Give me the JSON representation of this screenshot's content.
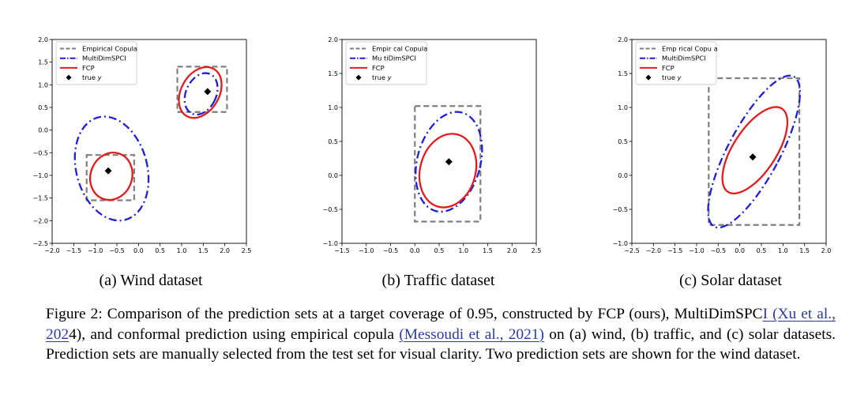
{
  "chart_data": [
    {
      "type": "scatter",
      "caption": "(a) Wind dataset",
      "xlim": [
        -2.0,
        2.5
      ],
      "ylim": [
        -2.5,
        2.0
      ],
      "xticks": [
        "−2.0",
        "−1.5",
        "−1.0",
        "−0.5",
        "0.0",
        "0.5",
        "1.0",
        "1.5",
        "2.0",
        "2.5"
      ],
      "yticks": [
        "−2.5",
        "−2.0",
        "−1.5",
        "−1.0",
        "−0.5",
        "0.0",
        "0.5",
        "1.0",
        "1.5",
        "2.0"
      ],
      "legend": [
        "Empirical Copula",
        "MultiDimSPCI",
        "FCP",
        "true y"
      ],
      "legend_position": "upper-left",
      "colors": {
        "copula": "#7f7f7f",
        "spci": "#1f1fd6",
        "fcp": "#e41a1c",
        "true": "#000000"
      },
      "sets": [
        {
          "true_y": [
            -0.7,
            -0.9
          ],
          "copula_box": [
            [
              -1.2,
              -1.55
            ],
            [
              -0.1,
              -0.55
            ]
          ],
          "spci_ellipse": {
            "center": [
              -0.62,
              -0.85
            ],
            "rx": 0.82,
            "ry": 1.17,
            "angle": -15
          },
          "fcp_ellipse": {
            "center": [
              -0.63,
              -1.02
            ],
            "rx": 0.48,
            "ry": 0.53,
            "angle": 20
          }
        },
        {
          "true_y": [
            1.6,
            0.85
          ],
          "copula_box": [
            [
              0.9,
              0.4
            ],
            [
              2.05,
              1.4
            ]
          ],
          "spci_ellipse": {
            "center": [
              1.45,
              0.8
            ],
            "rx": 0.35,
            "ry": 0.48,
            "angle": 25
          },
          "fcp_ellipse": {
            "center": [
              1.43,
              0.83
            ],
            "rx": 0.44,
            "ry": 0.6,
            "angle": 30
          }
        }
      ]
    },
    {
      "type": "scatter",
      "caption": "(b) Traffic dataset",
      "xlim": [
        -1.5,
        2.5
      ],
      "ylim": [
        -1.0,
        2.0
      ],
      "xticks": [
        "−1.5",
        "−1.0",
        "−0.5",
        "0.0",
        "0.5",
        "1.0",
        "1.5",
        "2.0",
        "2.5"
      ],
      "yticks": [
        "−1.0",
        "−0.5",
        "0.0",
        "0.5",
        "1.0",
        "1.5",
        "2.0"
      ],
      "legend": [
        "Empir cal Copula",
        "Mu tiDimSPCI",
        "FCP",
        "true y"
      ],
      "legend_position": "upper-left",
      "colors": {
        "copula": "#7f7f7f",
        "spci": "#1f1fd6",
        "fcp": "#e41a1c",
        "true": "#000000"
      },
      "sets": [
        {
          "true_y": [
            0.7,
            0.2
          ],
          "copula_box": [
            [
              0.0,
              -0.68
            ],
            [
              1.35,
              1.02
            ]
          ],
          "spci_ellipse": {
            "center": [
              0.7,
              0.2
            ],
            "rx": 0.65,
            "ry": 0.75,
            "angle": 15
          },
          "fcp_ellipse": {
            "center": [
              0.68,
              0.07
            ],
            "rx": 0.57,
            "ry": 0.55,
            "angle": 15
          }
        }
      ]
    },
    {
      "type": "scatter",
      "caption": "(c) Solar dataset",
      "xlim": [
        -2.5,
        2.0
      ],
      "ylim": [
        -1.0,
        2.0
      ],
      "xticks": [
        "−2.5",
        "−2.0",
        "−1.5",
        "−1.0",
        "−0.5",
        "0.0",
        "0.5",
        "1.0",
        "1.5",
        "2.0"
      ],
      "yticks": [
        "−1.0",
        "−0.5",
        "0.0",
        "0.5",
        "1.0",
        "1.5",
        "2.0"
      ],
      "legend": [
        "Emp rical Copu a",
        "MultiDimSPCI",
        "FCP",
        "true y"
      ],
      "legend_position": "upper-left",
      "colors": {
        "copula": "#7f7f7f",
        "spci": "#1f1fd6",
        "fcp": "#e41a1c",
        "true": "#000000"
      },
      "sets": [
        {
          "true_y": [
            0.3,
            0.27
          ],
          "copula_box": [
            [
              -0.72,
              -0.73
            ],
            [
              1.38,
              1.43
            ]
          ],
          "spci_ellipse": {
            "center": [
              0.33,
              0.35
            ],
            "rx": 0.6,
            "ry": 1.25,
            "angle": 28
          },
          "fcp_ellipse": {
            "center": [
              0.35,
              0.37
            ],
            "rx": 0.5,
            "ry": 0.73,
            "angle": 33
          }
        }
      ]
    }
  ],
  "figure": {
    "caption_parts": [
      {
        "text": "Figure 2: Comparison of the prediction sets at a target coverage of 0.95, constructed by FCP (ours), MultiDimSPC",
        "cite": false
      },
      {
        "text": "I (Xu et al., 202",
        "cite": true
      },
      {
        "text": "4), and conformal prediction using empirical copula ",
        "cite": false
      },
      {
        "text": "(Messoudi et al., 2021)",
        "cite": true
      },
      {
        "text": " on (a) wind, (b) traffic, and (c) solar datasets. Prediction sets are manually selected from the test set for visual clarity. Two prediction sets are shown for the wind dataset.",
        "cite": false
      }
    ]
  }
}
